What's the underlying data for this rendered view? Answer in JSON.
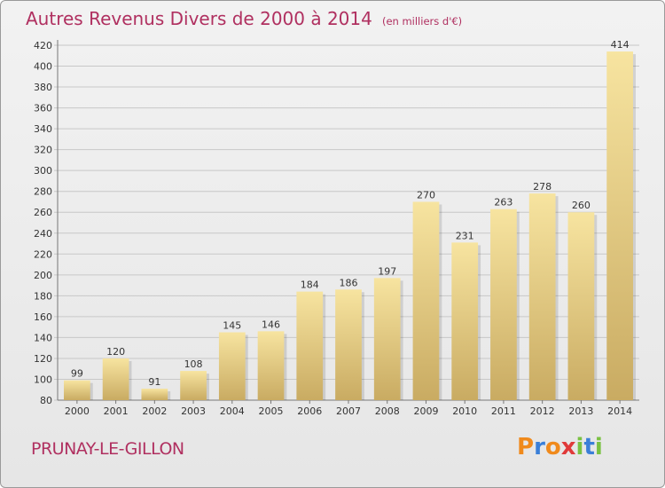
{
  "header": {
    "title": "Autres Revenus Divers de 2000 à 2014",
    "subtitle": "(en milliers d'€)"
  },
  "footer": {
    "commune": "PRUNAY-LE-GILLON",
    "brand": "Proxiti",
    "brand_letters": [
      "P",
      "r",
      "o",
      "x",
      "i",
      "t",
      "i"
    ],
    "brand_colors": [
      "#f08a1c",
      "#3a7fd8",
      "#f08a1c",
      "#e03a3a",
      "#7ac142",
      "#3a7fd8",
      "#7ac142"
    ]
  },
  "colors": {
    "title": "#b03060",
    "bar_light": "#f7e4a0",
    "bar_dark": "#c9ab62",
    "grid": "#c8c8c8",
    "axis_text": "#333333"
  },
  "chart_data": {
    "type": "bar",
    "categories": [
      "2000",
      "2001",
      "2002",
      "2003",
      "2004",
      "2005",
      "2006",
      "2007",
      "2008",
      "2009",
      "2010",
      "2011",
      "2012",
      "2013",
      "2014"
    ],
    "values": [
      99,
      120,
      91,
      108,
      145,
      146,
      184,
      186,
      197,
      270,
      231,
      263,
      278,
      260,
      414
    ],
    "title": "Autres Revenus Divers de 2000 à 2014",
    "subtitle": "(en milliers d'€)",
    "xlabel": "",
    "ylabel": "",
    "ylim": [
      80,
      420
    ],
    "yticks": [
      80,
      100,
      120,
      140,
      160,
      180,
      200,
      220,
      240,
      260,
      280,
      300,
      320,
      340,
      360,
      380,
      400,
      420
    ],
    "grid": true,
    "data_labels": true
  }
}
